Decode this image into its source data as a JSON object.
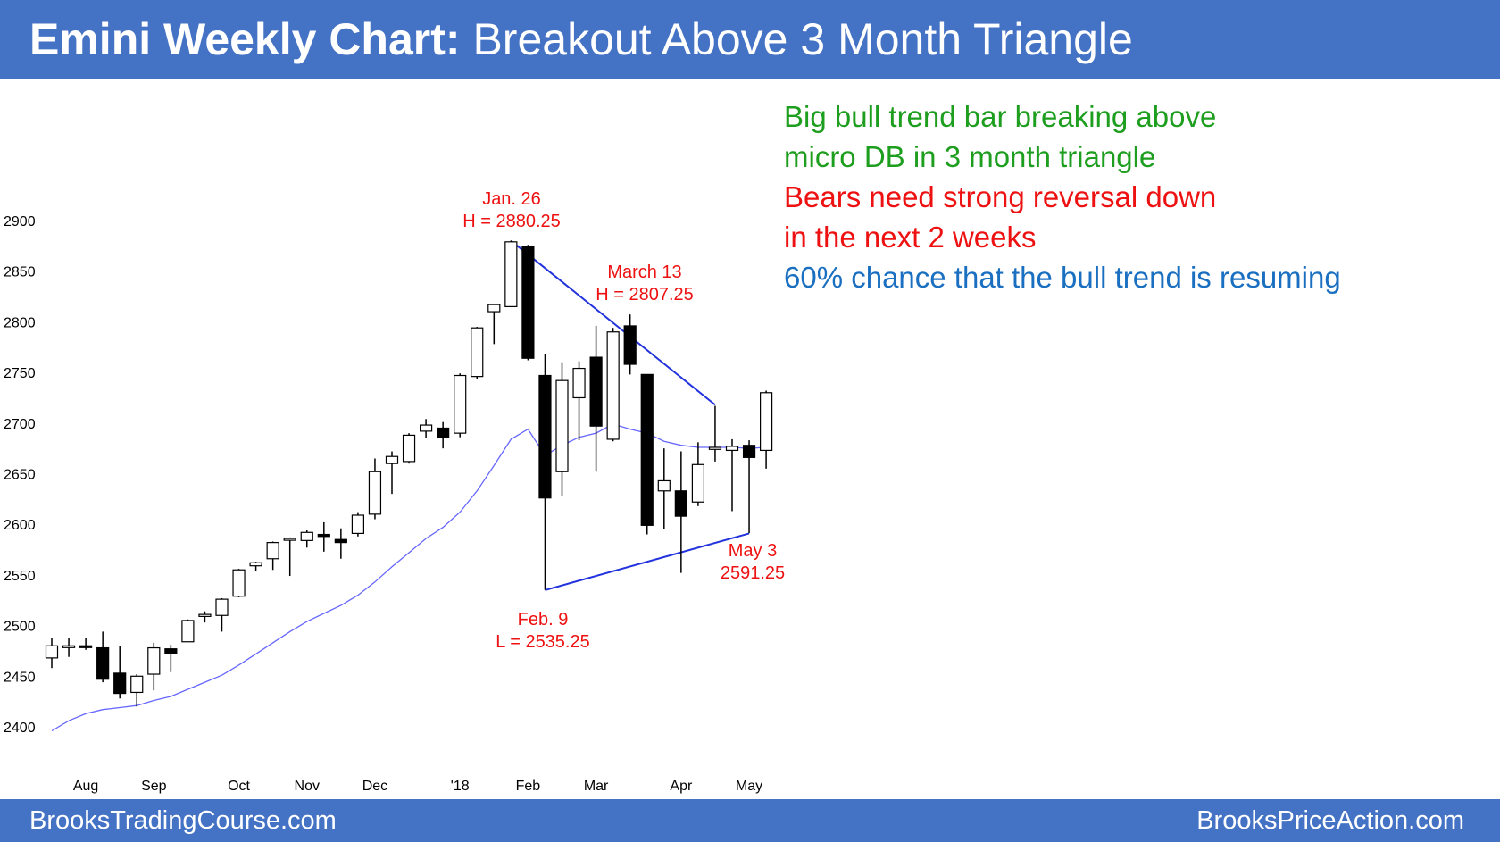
{
  "header": {
    "title_bold": "Emini Weekly Chart:",
    "title_rest": "Breakout Above 3 Month Triangle"
  },
  "footer": {
    "left": "BrooksTradingCourse.com",
    "right": "BrooksPriceAction.com"
  },
  "commentary": {
    "line1": "Big bull trend bar breaking above",
    "line2": "micro DB in 3 month triangle",
    "line3": "Bears need strong reversal down",
    "line4": "in the next 2 weeks",
    "line5": "60% chance that the bull trend is resuming"
  },
  "annotations": {
    "jan26_date": "Jan. 26",
    "jan26_value": "H = 2880.25",
    "mar13_date": "March 13",
    "mar13_value": "H = 2807.25",
    "feb9_date": "Feb. 9",
    "feb9_value": "L = 2535.25",
    "may3_date": "May 3",
    "may3_value": "2591.25"
  },
  "colors": {
    "bar_bull": "#ffffff",
    "bar_bear": "#000000",
    "moving_average": "#6666ff",
    "trendline": "#2233dd",
    "header_bg": "#4472c4"
  },
  "chart_data": {
    "type": "candlestick",
    "ylim": [
      2400,
      2900
    ],
    "y_ticks": [
      2900,
      2850,
      2800,
      2750,
      2700,
      2650,
      2600,
      2550,
      2500,
      2450,
      2400
    ],
    "x_ticks": [
      {
        "label": "Aug",
        "bar": 2
      },
      {
        "label": "Sep",
        "bar": 6
      },
      {
        "label": "Oct",
        "bar": 11
      },
      {
        "label": "Nov",
        "bar": 15
      },
      {
        "label": "Dec",
        "bar": 19
      },
      {
        "label": "'18",
        "bar": 24
      },
      {
        "label": "Feb",
        "bar": 28
      },
      {
        "label": "Mar",
        "bar": 32
      },
      {
        "label": "Apr",
        "bar": 37
      },
      {
        "label": "May",
        "bar": 41
      }
    ],
    "bars": [
      {
        "o": 2468,
        "h": 2488,
        "l": 2458,
        "c": 2480
      },
      {
        "o": 2479,
        "h": 2488,
        "l": 2469,
        "c": 2480
      },
      {
        "o": 2480,
        "h": 2488,
        "l": 2476,
        "c": 2479
      },
      {
        "o": 2478,
        "h": 2494,
        "l": 2444,
        "c": 2447
      },
      {
        "o": 2453,
        "h": 2480,
        "l": 2428,
        "c": 2433
      },
      {
        "o": 2434,
        "h": 2452,
        "l": 2420,
        "c": 2450
      },
      {
        "o": 2452,
        "h": 2483,
        "l": 2436,
        "c": 2478
      },
      {
        "o": 2477,
        "h": 2481,
        "l": 2454,
        "c": 2472
      },
      {
        "o": 2484,
        "h": 2506,
        "l": 2484,
        "c": 2505
      },
      {
        "o": 2509,
        "h": 2514,
        "l": 2503,
        "c": 2511
      },
      {
        "o": 2510,
        "h": 2527,
        "l": 2494,
        "c": 2526
      },
      {
        "o": 2529,
        "h": 2556,
        "l": 2528,
        "c": 2555
      },
      {
        "o": 2559,
        "h": 2563,
        "l": 2554,
        "c": 2562
      },
      {
        "o": 2566,
        "h": 2583,
        "l": 2555,
        "c": 2582
      },
      {
        "o": 2585,
        "h": 2587,
        "l": 2549,
        "c": 2586
      },
      {
        "o": 2584,
        "h": 2594,
        "l": 2577,
        "c": 2592
      },
      {
        "o": 2590,
        "h": 2602,
        "l": 2573,
        "c": 2588
      },
      {
        "o": 2585,
        "h": 2596,
        "l": 2566,
        "c": 2582
      },
      {
        "o": 2591,
        "h": 2612,
        "l": 2588,
        "c": 2609
      },
      {
        "o": 2610,
        "h": 2665,
        "l": 2605,
        "c": 2652
      },
      {
        "o": 2660,
        "h": 2672,
        "l": 2630,
        "c": 2667
      },
      {
        "o": 2662,
        "h": 2690,
        "l": 2660,
        "c": 2688
      },
      {
        "o": 2692,
        "h": 2704,
        "l": 2685,
        "c": 2698
      },
      {
        "o": 2695,
        "h": 2701,
        "l": 2675,
        "c": 2686
      },
      {
        "o": 2690,
        "h": 2749,
        "l": 2686,
        "c": 2747
      },
      {
        "o": 2746,
        "h": 2795,
        "l": 2743,
        "c": 2794
      },
      {
        "o": 2810,
        "h": 2818,
        "l": 2778,
        "c": 2817
      },
      {
        "o": 2815,
        "h": 2880.25,
        "l": 2815,
        "c": 2879
      },
      {
        "o": 2874,
        "h": 2876,
        "l": 2762,
        "c": 2764
      },
      {
        "o": 2747,
        "h": 2768,
        "l": 2535.25,
        "c": 2626
      },
      {
        "o": 2652,
        "h": 2760,
        "l": 2628,
        "c": 2742
      },
      {
        "o": 2725,
        "h": 2761,
        "l": 2683,
        "c": 2754
      },
      {
        "o": 2765,
        "h": 2796,
        "l": 2652,
        "c": 2697
      },
      {
        "o": 2684,
        "h": 2794,
        "l": 2682,
        "c": 2790
      },
      {
        "o": 2796,
        "h": 2807.25,
        "l": 2748,
        "c": 2758
      },
      {
        "o": 2748,
        "h": 2748,
        "l": 2590,
        "c": 2599
      },
      {
        "o": 2633,
        "h": 2675,
        "l": 2595,
        "c": 2643
      },
      {
        "o": 2633,
        "h": 2672,
        "l": 2552,
        "c": 2608
      },
      {
        "o": 2622,
        "h": 2681,
        "l": 2618,
        "c": 2659
      },
      {
        "o": 2674,
        "h": 2717,
        "l": 2662,
        "c": 2676
      },
      {
        "o": 2673,
        "h": 2684,
        "l": 2613,
        "c": 2677
      },
      {
        "o": 2678,
        "h": 2683,
        "l": 2591.25,
        "c": 2666
      },
      {
        "o": 2673,
        "h": 2732,
        "l": 2655,
        "c": 2730
      }
    ],
    "moving_average": [
      2396,
      2406,
      2413,
      2417,
      2419,
      2421,
      2426,
      2430,
      2437,
      2444,
      2451,
      2461,
      2472,
      2483,
      2494,
      2504,
      2512,
      2520,
      2530,
      2543,
      2558,
      2572,
      2586,
      2597,
      2612,
      2633,
      2658,
      2684,
      2694,
      2668,
      2678,
      2686,
      2690,
      2699,
      2694,
      2690,
      2682,
      2678,
      2676,
      2676,
      2676,
      2675,
      2676
    ],
    "trendlines": [
      {
        "from": {
          "bar": 27,
          "y": 2880
        },
        "to": {
          "bar": 39,
          "y": 2718
        }
      },
      {
        "from": {
          "bar": 29,
          "y": 2535
        },
        "to": {
          "bar": 41,
          "y": 2591
        }
      }
    ]
  }
}
